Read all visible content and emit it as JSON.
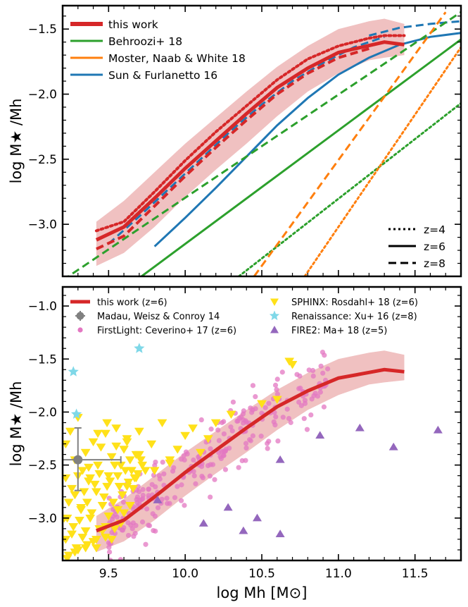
{
  "chart_data": [
    {
      "type": "line",
      "panel": "top",
      "ylabel": "log  M★ /Mh",
      "xlim": [
        9.2,
        11.8
      ],
      "ylim": [
        -3.4,
        -1.32
      ],
      "yticks": [
        -3.0,
        -2.5,
        -2.0,
        -1.5
      ],
      "ytick_labels": [
        "−3.0",
        "−2.5",
        "−2.0",
        "−1.5"
      ],
      "legend_models": [
        {
          "label": "this work",
          "color": "#d62728"
        },
        {
          "label": "Behroozi+ 18",
          "color": "#2ca02c"
        },
        {
          "label": "Moster, Naab & White 18",
          "color": "#ff7f0e"
        },
        {
          "label": "Sun & Furlanetto 16",
          "color": "#1f77b4"
        }
      ],
      "legend_styles": [
        {
          "label": "z=4",
          "dash": "dotted"
        },
        {
          "label": "z=6",
          "dash": "solid"
        },
        {
          "label": "z=8",
          "dash": "dashed"
        }
      ],
      "band": {
        "color": "#e8a0a0",
        "x": [
          9.42,
          9.6,
          9.8,
          10.0,
          10.2,
          10.4,
          10.6,
          10.8,
          11.0,
          11.2,
          11.3,
          11.43
        ],
        "upper": [
          -2.98,
          -2.82,
          -2.6,
          -2.38,
          -2.18,
          -1.98,
          -1.79,
          -1.63,
          -1.5,
          -1.44,
          -1.42,
          -1.46
        ],
        "lower": [
          -3.32,
          -3.22,
          -3.02,
          -2.79,
          -2.58,
          -2.38,
          -2.17,
          -1.98,
          -1.84,
          -1.74,
          -1.72,
          -1.7
        ]
      },
      "series": [
        {
          "model": "this work",
          "z": "4",
          "dash": "dotted",
          "color": "#d62728",
          "width": 4,
          "x": [
            9.42,
            9.6,
            9.8,
            10.0,
            10.2,
            10.4,
            10.6,
            10.8,
            11.0,
            11.2,
            11.3,
            11.43
          ],
          "y": [
            -3.05,
            -2.98,
            -2.75,
            -2.51,
            -2.29,
            -2.09,
            -1.89,
            -1.73,
            -1.63,
            -1.57,
            -1.55,
            -1.55
          ]
        },
        {
          "model": "this work",
          "z": "6",
          "dash": "solid",
          "color": "#d62728",
          "width": 5,
          "x": [
            9.42,
            9.6,
            9.8,
            10.0,
            10.2,
            10.4,
            10.6,
            10.8,
            11.0,
            11.15,
            11.3,
            11.43
          ],
          "y": [
            -3.12,
            -3.02,
            -2.8,
            -2.57,
            -2.36,
            -2.15,
            -1.95,
            -1.8,
            -1.68,
            -1.64,
            -1.6,
            -1.62
          ]
        },
        {
          "model": "this work",
          "z": "8",
          "dash": "dashed",
          "color": "#d62728",
          "width": 4,
          "x": [
            9.42,
            9.6,
            9.8,
            10.0,
            10.2,
            10.4,
            10.6,
            10.8,
            11.0,
            11.2
          ],
          "y": [
            -3.19,
            -3.09,
            -2.86,
            -2.63,
            -2.41,
            -2.2,
            -2.0,
            -1.84,
            -1.72,
            -1.65
          ]
        },
        {
          "model": "Sun & Furlanetto 16",
          "z": "8",
          "dash": "dashed",
          "color": "#1f77b4",
          "width": 3,
          "x": [
            9.5,
            9.7,
            9.9,
            10.1,
            10.3,
            10.5,
            10.7,
            10.9,
            11.1,
            11.3
          ],
          "y": [
            -3.15,
            -2.94,
            -2.72,
            -2.5,
            -2.28,
            -2.08,
            -1.9,
            -1.76,
            -1.64,
            -1.56
          ]
        },
        {
          "model": "Sun & Furlanetto 16",
          "z": "6",
          "dash": "solid",
          "color": "#1f77b4",
          "width": 3,
          "x": [
            9.8,
            10.0,
            10.2,
            10.4,
            10.6,
            10.8,
            11.0,
            11.2,
            11.4,
            11.6,
            11.8
          ],
          "y": [
            -3.17,
            -2.95,
            -2.72,
            -2.48,
            -2.24,
            -2.03,
            -1.85,
            -1.72,
            -1.62,
            -1.56,
            -1.53
          ]
        },
        {
          "model": "Sun & Furlanetto 16",
          "z": "4",
          "dash": "dashed",
          "color": "#1f77b4",
          "width": 3,
          "x": [
            11.2,
            11.4,
            11.6,
            11.8
          ],
          "y": [
            -1.55,
            -1.49,
            -1.46,
            -1.44
          ]
        },
        {
          "model": "Behroozi+ 18",
          "z": "8",
          "dash": "dashed",
          "color": "#2ca02c",
          "width": 3,
          "x": [
            9.2,
            11.8
          ],
          "y": [
            -3.43,
            -1.37
          ]
        },
        {
          "model": "Behroozi+ 18",
          "z": "6",
          "dash": "solid",
          "color": "#2ca02c",
          "width": 3,
          "x": [
            9.6,
            11.8
          ],
          "y": [
            -3.5,
            -1.58
          ]
        },
        {
          "model": "Behroozi+ 18",
          "z": "4",
          "dash": "dotted",
          "color": "#2ca02c",
          "width": 3,
          "x": [
            10.35,
            11.8
          ],
          "y": [
            -3.4,
            -2.07
          ]
        },
        {
          "model": "Moster, Naab & White 18",
          "z": "8",
          "dash": "dashed",
          "color": "#ff7f0e",
          "width": 3,
          "x": [
            10.45,
            11.7
          ],
          "y": [
            -3.4,
            -1.37
          ]
        },
        {
          "model": "Moster, Naab & White 18",
          "z": "4",
          "dash": "dotted",
          "color": "#ff7f0e",
          "width": 3,
          "x": [
            10.78,
            11.8
          ],
          "y": [
            -3.4,
            -1.64
          ]
        }
      ]
    },
    {
      "type": "scatter",
      "panel": "bottom",
      "xlabel": "log  Mh  [M⊙]",
      "ylabel": "log  M★ /Mh",
      "xlim": [
        9.2,
        11.8
      ],
      "ylim": [
        -3.4,
        -0.82
      ],
      "xticks": [
        9.5,
        10.0,
        10.5,
        11.0,
        11.5
      ],
      "xtick_labels": [
        "9.5",
        "10.0",
        "10.5",
        "11.0",
        "11.5"
      ],
      "yticks": [
        -3.0,
        -2.5,
        -2.0,
        -1.5,
        -1.0
      ],
      "ytick_labels": [
        "−3.0",
        "−2.5",
        "−2.0",
        "−1.5",
        "−1.0"
      ],
      "legend": [
        {
          "label": "this work (z=6)",
          "marker": "line",
          "color": "#d62728"
        },
        {
          "label": "Madau, Weisz & Conroy 14",
          "marker": "errorbar",
          "color": "#808080"
        },
        {
          "label": "FirstLight: Ceverino+ 17 (z=6)",
          "marker": "circle",
          "color": "#e377c2"
        },
        {
          "label": "SPHINX: Rosdahl+ 18 (z=6)",
          "marker": "triangle-down",
          "color": "#ffe119"
        },
        {
          "label": "Renaissance: Xu+ 16 (z=8)",
          "marker": "star",
          "color": "#7fd8e8"
        },
        {
          "label": "FIRE2: Ma+ 18 (z=5)",
          "marker": "triangle-up",
          "color": "#9467bd"
        }
      ],
      "band": {
        "color": "#e8a0a0",
        "x": [
          9.42,
          9.6,
          9.8,
          10.0,
          10.2,
          10.4,
          10.6,
          10.8,
          11.0,
          11.2,
          11.3,
          11.43
        ],
        "upper": [
          -2.98,
          -2.82,
          -2.6,
          -2.38,
          -2.18,
          -1.98,
          -1.79,
          -1.63,
          -1.5,
          -1.44,
          -1.42,
          -1.46
        ],
        "lower": [
          -3.32,
          -3.22,
          -3.02,
          -2.79,
          -2.58,
          -2.38,
          -2.17,
          -1.98,
          -1.84,
          -1.74,
          -1.72,
          -1.7
        ]
      },
      "this_work_line": {
        "x": [
          9.42,
          9.6,
          9.8,
          10.0,
          10.2,
          10.4,
          10.6,
          10.8,
          11.0,
          11.15,
          11.3,
          11.43
        ],
        "y": [
          -3.12,
          -3.02,
          -2.8,
          -2.57,
          -2.36,
          -2.15,
          -1.95,
          -1.8,
          -1.68,
          -1.64,
          -1.6,
          -1.62
        ]
      },
      "madau14": {
        "x": 9.3,
        "y": -2.45,
        "xerr": [
          0.1,
          0.28
        ],
        "yerr": [
          0.29,
          0.3
        ]
      },
      "renaissance": {
        "x": [
          9.27,
          9.29,
          9.7
        ],
        "y": [
          -1.62,
          -2.02,
          -1.4
        ]
      },
      "fire2": {
        "x": [
          9.82,
          10.12,
          10.28,
          10.38,
          10.47,
          10.62,
          10.62,
          10.88,
          11.14,
          11.36,
          11.65
        ],
        "y": [
          -2.83,
          -3.05,
          -2.9,
          -3.12,
          -3.0,
          -2.45,
          -3.15,
          -2.22,
          -2.15,
          -2.33,
          -2.17
        ]
      },
      "sphinx": {
        "x": [
          9.22,
          9.25,
          9.28,
          9.3,
          9.33,
          9.35,
          9.38,
          9.4,
          9.43,
          9.45,
          9.48,
          9.5,
          9.52,
          9.55,
          9.58,
          9.6,
          9.62,
          9.65,
          9.68,
          9.7,
          9.72,
          9.22,
          9.26,
          9.3,
          9.34,
          9.37,
          9.41,
          9.44,
          9.47,
          9.51,
          9.54,
          9.57,
          9.61,
          9.64,
          9.67,
          9.24,
          9.28,
          9.32,
          9.36,
          9.39,
          9.42,
          9.46,
          9.49,
          9.53,
          9.56,
          9.59,
          9.63,
          9.66,
          9.69,
          9.71,
          9.23,
          9.27,
          9.31,
          9.35,
          9.38,
          9.44,
          9.5,
          9.56,
          9.62,
          9.68,
          9.74,
          9.22,
          9.29,
          9.33,
          9.4,
          9.46,
          9.52,
          9.58,
          9.64,
          9.24,
          9.3,
          9.36,
          9.42,
          9.48,
          9.54,
          9.6,
          9.21,
          9.26,
          9.32,
          9.37,
          9.43,
          9.49,
          9.55,
          9.62,
          9.7,
          9.78,
          9.85,
          9.9,
          9.95,
          10.0,
          10.05,
          10.1,
          10.15,
          10.2,
          10.3,
          10.5,
          10.6,
          10.68,
          10.7,
          9.23,
          9.28,
          9.35,
          9.42,
          9.48,
          9.8,
          9.9
        ],
        "y": [
          -2.3,
          -2.18,
          -2.45,
          -2.05,
          -2.55,
          -2.38,
          -2.62,
          -2.28,
          -2.5,
          -2.33,
          -2.2,
          -2.6,
          -2.42,
          -2.15,
          -2.5,
          -2.35,
          -2.25,
          -2.55,
          -2.4,
          -2.18,
          -2.5,
          -2.62,
          -2.72,
          -2.6,
          -2.75,
          -2.52,
          -2.68,
          -2.58,
          -2.8,
          -2.65,
          -2.5,
          -2.7,
          -2.55,
          -2.45,
          -2.62,
          -2.85,
          -2.78,
          -2.92,
          -2.85,
          -2.95,
          -2.75,
          -2.88,
          -2.7,
          -2.85,
          -2.6,
          -2.78,
          -2.66,
          -2.72,
          -2.58,
          -2.45,
          -3.0,
          -3.08,
          -3.02,
          -3.12,
          -3.0,
          -3.1,
          -2.98,
          -2.92,
          -2.7,
          -2.62,
          -2.55,
          -3.2,
          -3.28,
          -3.18,
          -3.22,
          -3.12,
          -3.2,
          -3.05,
          -2.88,
          -3.35,
          -3.3,
          -3.25,
          -3.28,
          -3.18,
          -3.1,
          -2.95,
          -3.0,
          -3.15,
          -2.9,
          -2.65,
          -2.2,
          -2.1,
          -2.32,
          -2.28,
          -2.4,
          -2.3,
          -2.1,
          -2.45,
          -2.35,
          -2.22,
          -2.15,
          -2.38,
          -2.25,
          -2.1,
          -2.02,
          -1.92,
          -1.88,
          -1.52,
          -1.55,
          -3.38,
          -3.32,
          -3.28,
          -3.2,
          -3.08,
          -2.55,
          -2.48
        ]
      },
      "firstlight_seed_count": 260
    }
  ]
}
